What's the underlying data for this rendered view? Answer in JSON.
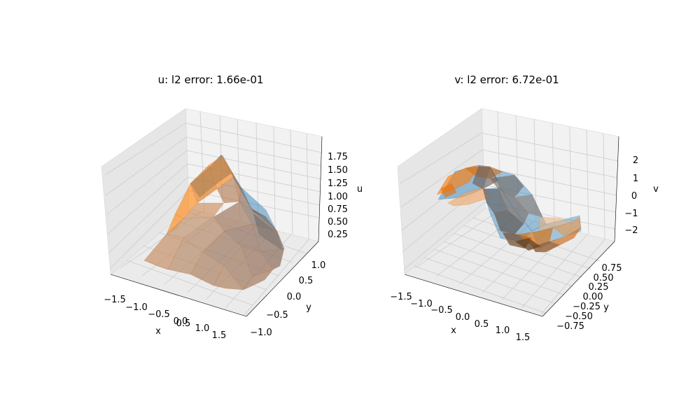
{
  "chart_data": [
    {
      "type": "surface3d",
      "title": "u: l2 error: 1.66e-01",
      "xlabel": "x",
      "ylabel": "y",
      "zlabel": "u",
      "xticks": [
        "−1.5",
        "−1.0",
        "−0.5",
        "0.0",
        "0.5",
        "1.0",
        "1.5"
      ],
      "yticks": [
        "−1.0",
        "−0.5",
        "0.0",
        "0.5",
        "1.0"
      ],
      "zticks": [
        "0.25",
        "0.50",
        "0.75",
        "1.00",
        "1.25",
        "1.50",
        "1.75"
      ],
      "xlim": [
        -1.7,
        1.7
      ],
      "ylim": [
        -1.2,
        1.2
      ],
      "zlim": [
        0.1,
        1.85
      ],
      "grid": true,
      "series": [
        {
          "color": "#1f77b4",
          "alpha": 0.5
        },
        {
          "color": "#ff7f0e",
          "alpha": 0.5
        }
      ]
    },
    {
      "type": "surface3d",
      "title": "v: l2 error: 6.72e-01",
      "xlabel": "x",
      "ylabel": "y",
      "zlabel": "v",
      "xticks": [
        "−1.5",
        "−1.0",
        "−0.5",
        "0.0",
        "0.5",
        "1.0",
        "1.5"
      ],
      "yticks": [
        "−0.75",
        "−0.50",
        "−0.25",
        "0.00",
        "0.25",
        "0.50",
        "0.75"
      ],
      "zticks": [
        "−2",
        "−1",
        "0",
        "1",
        "2"
      ],
      "xlim": [
        -1.7,
        1.7
      ],
      "ylim": [
        -0.9,
        0.9
      ],
      "zlim": [
        -2.8,
        2.8
      ],
      "grid": true,
      "series": [
        {
          "color": "#1f77b4",
          "alpha": 0.5
        },
        {
          "color": "#ff7f0e",
          "alpha": 0.5
        }
      ]
    }
  ]
}
